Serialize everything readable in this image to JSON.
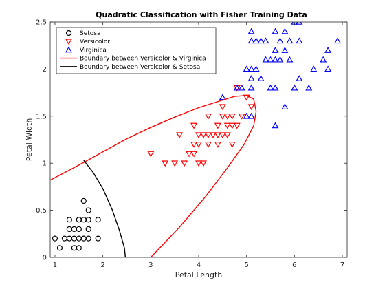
{
  "chart_data": {
    "type": "scatter",
    "title": "Quadratic Classification with Fisher Training Data",
    "xlabel": "Petal Length",
    "ylabel": "Petal Width",
    "xlim": [
      0.9,
      7.1
    ],
    "ylim": [
      0,
      2.5
    ],
    "xticks": [
      "1",
      "2",
      "3",
      "4",
      "5",
      "6",
      "7"
    ],
    "yticks": [
      "0",
      "0.5",
      "1",
      "1.5",
      "2",
      "2.5"
    ],
    "legend_position": "top-left",
    "grid": false,
    "series": [
      {
        "name": "Setosa",
        "marker": "circle",
        "color": "#000000",
        "points": [
          [
            1.0,
            0.2
          ],
          [
            1.1,
            0.1
          ],
          [
            1.2,
            0.2
          ],
          [
            1.3,
            0.2
          ],
          [
            1.3,
            0.3
          ],
          [
            1.3,
            0.4
          ],
          [
            1.4,
            0.1
          ],
          [
            1.4,
            0.2
          ],
          [
            1.4,
            0.3
          ],
          [
            1.5,
            0.1
          ],
          [
            1.5,
            0.2
          ],
          [
            1.5,
            0.3
          ],
          [
            1.5,
            0.4
          ],
          [
            1.6,
            0.2
          ],
          [
            1.6,
            0.4
          ],
          [
            1.6,
            0.6
          ],
          [
            1.7,
            0.2
          ],
          [
            1.7,
            0.3
          ],
          [
            1.7,
            0.4
          ],
          [
            1.7,
            0.5
          ],
          [
            1.9,
            0.2
          ],
          [
            1.9,
            0.4
          ]
        ]
      },
      {
        "name": "Versicolor",
        "marker": "triangle-down",
        "color": "#ff0000",
        "points": [
          [
            3.0,
            1.1
          ],
          [
            3.3,
            1.0
          ],
          [
            3.5,
            1.0
          ],
          [
            3.6,
            1.3
          ],
          [
            3.7,
            1.0
          ],
          [
            3.8,
            1.1
          ],
          [
            3.9,
            1.1
          ],
          [
            3.9,
            1.2
          ],
          [
            3.9,
            1.4
          ],
          [
            4.0,
            1.0
          ],
          [
            4.0,
            1.2
          ],
          [
            4.0,
            1.3
          ],
          [
            4.1,
            1.0
          ],
          [
            4.1,
            1.3
          ],
          [
            4.2,
            1.2
          ],
          [
            4.2,
            1.3
          ],
          [
            4.2,
            1.5
          ],
          [
            4.3,
            1.3
          ],
          [
            4.4,
            1.2
          ],
          [
            4.4,
            1.3
          ],
          [
            4.4,
            1.4
          ],
          [
            4.5,
            1.3
          ],
          [
            4.5,
            1.5
          ],
          [
            4.5,
            1.6
          ],
          [
            4.6,
            1.3
          ],
          [
            4.6,
            1.4
          ],
          [
            4.6,
            1.5
          ],
          [
            4.7,
            1.2
          ],
          [
            4.7,
            1.4
          ],
          [
            4.7,
            1.5
          ],
          [
            4.8,
            1.4
          ],
          [
            4.8,
            1.8
          ],
          [
            4.9,
            1.5
          ],
          [
            5.0,
            1.7
          ],
          [
            5.1,
            1.6
          ]
        ]
      },
      {
        "name": "Virginica",
        "marker": "triangle-up",
        "color": "#0000ff",
        "points": [
          [
            4.5,
            1.7
          ],
          [
            4.8,
            1.8
          ],
          [
            4.9,
            1.8
          ],
          [
            5.0,
            1.5
          ],
          [
            5.0,
            2.0
          ],
          [
            5.1,
            1.5
          ],
          [
            5.1,
            1.8
          ],
          [
            5.1,
            1.9
          ],
          [
            5.1,
            2.0
          ],
          [
            5.1,
            2.3
          ],
          [
            5.1,
            2.4
          ],
          [
            5.2,
            2.0
          ],
          [
            5.2,
            2.3
          ],
          [
            5.3,
            1.9
          ],
          [
            5.3,
            2.3
          ],
          [
            5.4,
            2.1
          ],
          [
            5.4,
            2.3
          ],
          [
            5.5,
            1.8
          ],
          [
            5.5,
            2.1
          ],
          [
            5.6,
            1.4
          ],
          [
            5.6,
            1.8
          ],
          [
            5.6,
            2.1
          ],
          [
            5.6,
            2.2
          ],
          [
            5.6,
            2.4
          ],
          [
            5.7,
            2.1
          ],
          [
            5.7,
            2.3
          ],
          [
            5.8,
            1.6
          ],
          [
            5.8,
            2.2
          ],
          [
            5.8,
            2.4
          ],
          [
            5.9,
            2.1
          ],
          [
            5.9,
            2.3
          ],
          [
            6.0,
            1.8
          ],
          [
            6.0,
            2.5
          ],
          [
            6.1,
            1.9
          ],
          [
            6.1,
            2.3
          ],
          [
            6.1,
            2.5
          ],
          [
            6.3,
            1.8
          ],
          [
            6.4,
            2.0
          ],
          [
            6.6,
            2.1
          ],
          [
            6.7,
            2.0
          ],
          [
            6.7,
            2.2
          ],
          [
            6.9,
            2.3
          ]
        ]
      },
      {
        "name": "Boundary between Versicolor & Virginica",
        "marker": "line",
        "color": "#ff0000",
        "points": [
          [
            0.9,
            0.82
          ],
          [
            1.2,
            0.9
          ],
          [
            1.5,
            0.98
          ],
          [
            2.0,
            1.12
          ],
          [
            2.5,
            1.26
          ],
          [
            3.0,
            1.38
          ],
          [
            3.5,
            1.49
          ],
          [
            4.0,
            1.59
          ],
          [
            4.5,
            1.67
          ],
          [
            4.75,
            1.71
          ],
          [
            5.0,
            1.72
          ],
          [
            5.15,
            1.68
          ],
          [
            5.2,
            1.55
          ],
          [
            5.15,
            1.4
          ],
          [
            4.95,
            1.2
          ],
          [
            4.6,
            0.95
          ],
          [
            4.15,
            0.65
          ],
          [
            3.6,
            0.32
          ],
          [
            3.0,
            0.0
          ]
        ]
      },
      {
        "name": "Boundary between Versicolor & Setosa",
        "marker": "line",
        "color": "#000000",
        "points": [
          [
            1.6,
            1.03
          ],
          [
            1.8,
            0.9
          ],
          [
            2.0,
            0.73
          ],
          [
            2.2,
            0.5
          ],
          [
            2.35,
            0.28
          ],
          [
            2.45,
            0.1
          ],
          [
            2.47,
            0.0
          ]
        ]
      }
    ]
  }
}
